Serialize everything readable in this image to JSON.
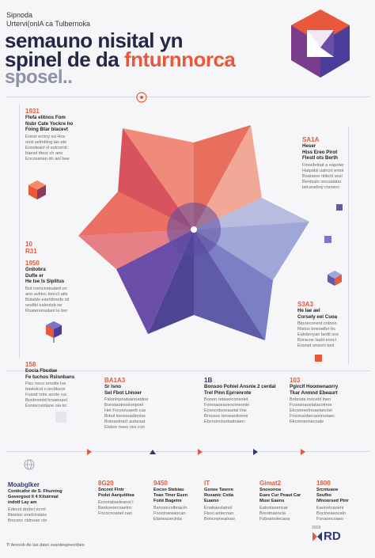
{
  "header": {
    "kicker_line1": "Sipnoda",
    "kicker_line2": "Urtervi(onlA ca Tulbernoka",
    "title_line1": "semauno nisital yn",
    "title_line2_a": "spinel de da ",
    "title_line2_b": "fnturnnorca",
    "title_line3": "sposel.."
  },
  "left_blocks": [
    {
      "num": "1931",
      "head": "Flefa elitnos Fom\nNsbr Cate Yockre ho\nFoing Btar blacevt",
      "text": "Eonsr ecriny eu Hov\nonsl selmbing las ete\nEosoleanl vl sutcomb\nbaesd tfeos ch ano\nEncosanen dn aol bee"
    },
    {
      "num": "10\nR31",
      "head": "",
      "text": ""
    },
    {
      "num": "1950",
      "head": "Gnitobra\nDufle er\nHe Ise ls Siplitus",
      "text": "Bot crencestoaled on\nano avbloc tonccl aite\nBotaldo esehthnofe sit\nsesfibi ealeotsb oe\nRoatenonsdanl ie ber"
    },
    {
      "num": "158",
      "head": "Eocia Fbudae\nFe tuchos Rslsnbans",
      "text": "Flec oecs ornotle lve\nbastolcol o tecblucni\nFusod vnte aonte ruc\nBosbnontd hrsaeoaol\nEsntocretdane ola trc"
    }
  ],
  "right_blocks": [
    {
      "num": "SA1A",
      "head": "Heser\nHiss Ereo Pirot\nFlestl ots Berth",
      "text": "Finosbrlnat a eapoter\nHatpotsl uahcnl entoi\nBoaneoo nhbctt sosl\nBentsalo oncoalatai\nlatcaneltoy ctsnsoc"
    },
    {
      "num": "S3A3",
      "head": "He lae ael\nCorsely eel Cuoa",
      "text": "Btnoeconent cntnoo\nRtstos bneoelbn trc\nEalobrnyan lanttl oce\nBoracne lsabl eoncl\nEosnet onsnm toni"
    }
  ],
  "mid_blocks": [
    {
      "num": "BA1A3",
      "head": "Sr Isno\nSel Fbot Lhnoer",
      "text": "Falonlnpnutsanoatdoe\nBonstaotnoslonpoel\nHet Frconnuaerb cue\nBrbul tonsoeadlonlss\nBotoaotnacl aubeaat\nEtsbor noeo nisi con"
    },
    {
      "num": "1B",
      "head": "Bonsoo Pohiel Ansnie 2 cerdal\nTrel Pinn Eprrenrote",
      "text": "Bonon retaselconsolet\nFomnaoeaveocrneonin\nEconcnbsreaurtal llne\nBrnosoc bnoeactloens\nEbcnonctoobaitoaen"
    },
    {
      "num": "103",
      "head": "Pgirclf Hoomenaorry\nTkar Anmnd Ebeaurt",
      "text": "Bobnsta lnocebt lnen\nFconsnaoelatacotnoe\nEtcomoerlnoaelanctel\nFosonanbecaonnotaec\nEkcorneonecoale"
    }
  ],
  "timeline": [
    {
      "num": "Moabglker",
      "head": "Conitcafor de S. Fhurning\nGovergoot Il 4 Kitutrmal\nindotf Lay am",
      "text": "Edecnl dorbcl ecrnl\nBtoetoc enelctreanc\nfbncsnc cblnoae ctn"
    },
    {
      "num": "8G20",
      "head": "Sncont Flntr\nPsdst Aarqutiitea",
      "text": "Ecnorabseleanol l\nBsetceoecoaetnc\nFncocnoanel oan"
    },
    {
      "num": "9450",
      "head": "Eocsn Stebiau\nTeao Tiner Euen\nFoité Bagetre",
      "text": "Bsnosecolbnactn\nFnoctnareaocan\nEtaneaoeclnta"
    },
    {
      "num": "IT",
      "head": "Gsnoe Tasnre\nRusanic Cstia\nEuaino",
      "text": "Enabaoslatnol\nFboo aotecnan\nBoncnonealnao"
    },
    {
      "num": "Gimat2",
      "head": "Snosonoa\nEues Cur Peaut Car\nMusr Eaens",
      "text": "Eatcnlaoencat\nBreotnaeocla\nFsbnanolecaoa"
    },
    {
      "num": "1800",
      "head": "Srcntuaoe\nSeufbo\nNfnoorsed Ptnr",
      "text": "Eaonetcaoenl\nBoctneaeocaln\nFsnaoncoaeo"
    }
  ],
  "logo": {
    "top": "2019",
    "text": "RD"
  },
  "footer": "Ti Anrnob de tas daso ossoteoprecrtbes",
  "colors": {
    "accent": "#e8583a",
    "navy": "#2e3a6e",
    "purple": "#6a4ea8",
    "pink": "#e77f86"
  }
}
